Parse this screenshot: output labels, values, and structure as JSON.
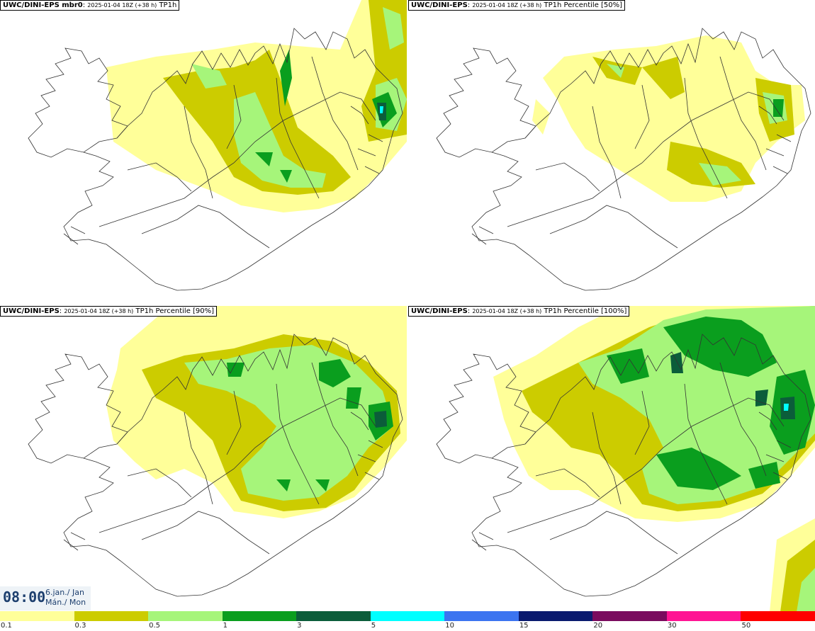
{
  "panels": [
    {
      "title_bold": "UWC/DINI-EPS mbr0",
      "title_run": "2025-01-04 18Z (+38 h)",
      "title_field": "TP1h"
    },
    {
      "title_bold": "UWC/DINI-EPS",
      "title_run": "2025-01-04 18Z (+38 h)",
      "title_field": "TP1h Percentile [50%]"
    },
    {
      "title_bold": "UWC/DINI-EPS",
      "title_run": "2025-01-04 18Z (+38 h)",
      "title_field": "TP1h Percentile [90%]"
    },
    {
      "title_bold": "UWC/DINI-EPS",
      "title_run": "2025-01-04 18Z (+38 h)",
      "title_field": "TP1h Percentile [100%]"
    }
  ],
  "timebox": {
    "time": "08:00",
    "date_line1": "6.jan./ Jan",
    "date_line2": "Mán./ Mon"
  },
  "legend": {
    "labels": [
      "0.1",
      "0.3",
      "0.5",
      "1",
      "3",
      "5",
      "10",
      "15",
      "20",
      "30",
      "50"
    ],
    "colors": [
      "#ffff99",
      "#cccc00",
      "#a6f57a",
      "#0a9e1e",
      "#0b5d3a",
      "#00ffff",
      "#3c74f0",
      "#0a1a6e",
      "#7a0b5e",
      "#ff1493",
      "#ff0000"
    ]
  },
  "map_colors": {
    "light_yellow": "#ffff99",
    "olive": "#cccc00",
    "light_green": "#a6f57a",
    "green": "#0a9e1e",
    "dark_green": "#0b5d3a",
    "cyan": "#00ffff"
  }
}
